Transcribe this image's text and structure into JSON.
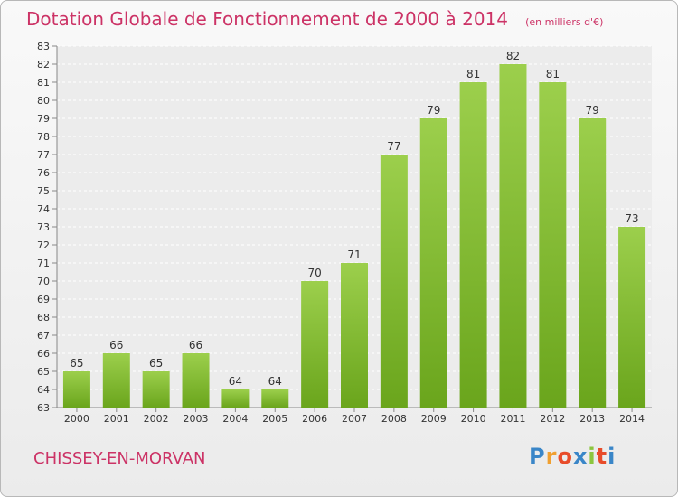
{
  "chart_data": {
    "type": "bar",
    "title": "Dotation Globale de Fonctionnement de 2000 à 2014",
    "unit_note": "(en milliers d'€)",
    "categories": [
      "2000",
      "2001",
      "2002",
      "2003",
      "2004",
      "2005",
      "2006",
      "2007",
      "2008",
      "2009",
      "2010",
      "2011",
      "2012",
      "2013",
      "2014"
    ],
    "values": [
      65,
      66,
      65,
      66,
      64,
      64,
      70,
      71,
      77,
      79,
      81,
      82,
      81,
      79,
      73
    ],
    "ylim": [
      63,
      83
    ],
    "yticks": [
      "63",
      "64",
      "65",
      "66",
      "67",
      "68",
      "69",
      "70",
      "71",
      "72",
      "73",
      "74",
      "75",
      "76",
      "77",
      "78",
      "79",
      "80",
      "81",
      "82",
      "83"
    ],
    "grid": true,
    "bar_color_light": "#9ccf4c",
    "bar_color_dark": "#6aa51c"
  },
  "commune": "CHISSEY-EN-MORVAN",
  "brand": {
    "letters": [
      "P",
      "r",
      "o",
      "x",
      "i",
      "t",
      "i"
    ],
    "colors": [
      "#3a86c8",
      "#f0a030",
      "#e84c2a",
      "#3a86c8",
      "#8cc63e",
      "#e84c2a",
      "#3a86c8"
    ]
  },
  "accent_color": "#cc3366"
}
